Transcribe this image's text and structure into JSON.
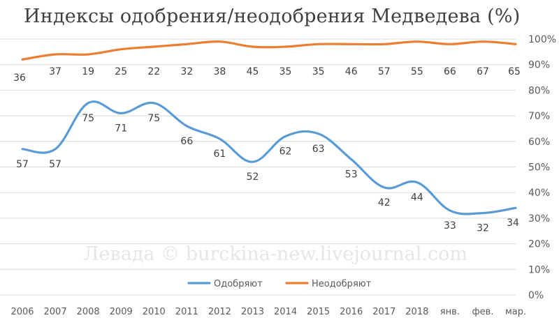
{
  "chart_data": {
    "type": "line",
    "title": "Индексы одобрения/неодобрения Медведева (%)",
    "watermark": "Левада © burckina-new.livejournal.com",
    "categories": [
      "2006",
      "2007",
      "2008",
      "2009",
      "2010",
      "2011",
      "2012",
      "2013",
      "2014",
      "2015",
      "2016",
      "2017",
      "2018",
      "янв.",
      "фев.",
      "мар."
    ],
    "ylim": [
      0,
      100
    ],
    "yticks": [
      "0%",
      "10%",
      "20%",
      "30%",
      "40%",
      "50%",
      "60%",
      "70%",
      "80%",
      "90%",
      "100%"
    ],
    "grid": true,
    "legend_position": "bottom",
    "stacked": true,
    "series": [
      {
        "name": "Одобряют",
        "color": "#5b9bd5",
        "values": [
          57,
          57,
          75,
          71,
          75,
          66,
          61,
          52,
          62,
          63,
          53,
          42,
          44,
          33,
          32,
          34
        ],
        "labels": [
          "57",
          "57",
          "75",
          "71",
          "75",
          "66",
          "61",
          "52",
          "62",
          "63",
          "53",
          "42",
          "44",
          "33",
          "32",
          "34"
        ]
      },
      {
        "name": "Неодобряют",
        "color": "#ed7d31",
        "values": [
          36,
          37,
          19,
          25,
          22,
          32,
          38,
          45,
          35,
          35,
          46,
          57,
          55,
          66,
          67,
          65
        ],
        "labels": [
          "36",
          "37",
          "19",
          "25",
          "22",
          "32",
          "38",
          "45",
          "35",
          "35",
          "46",
          "57",
          "55",
          "66",
          "67",
          "65"
        ],
        "plotted_levels": [
          92,
          94,
          94,
          96,
          97,
          98,
          99,
          97,
          97,
          98,
          98,
          98,
          99,
          98,
          99,
          98
        ]
      }
    ]
  }
}
